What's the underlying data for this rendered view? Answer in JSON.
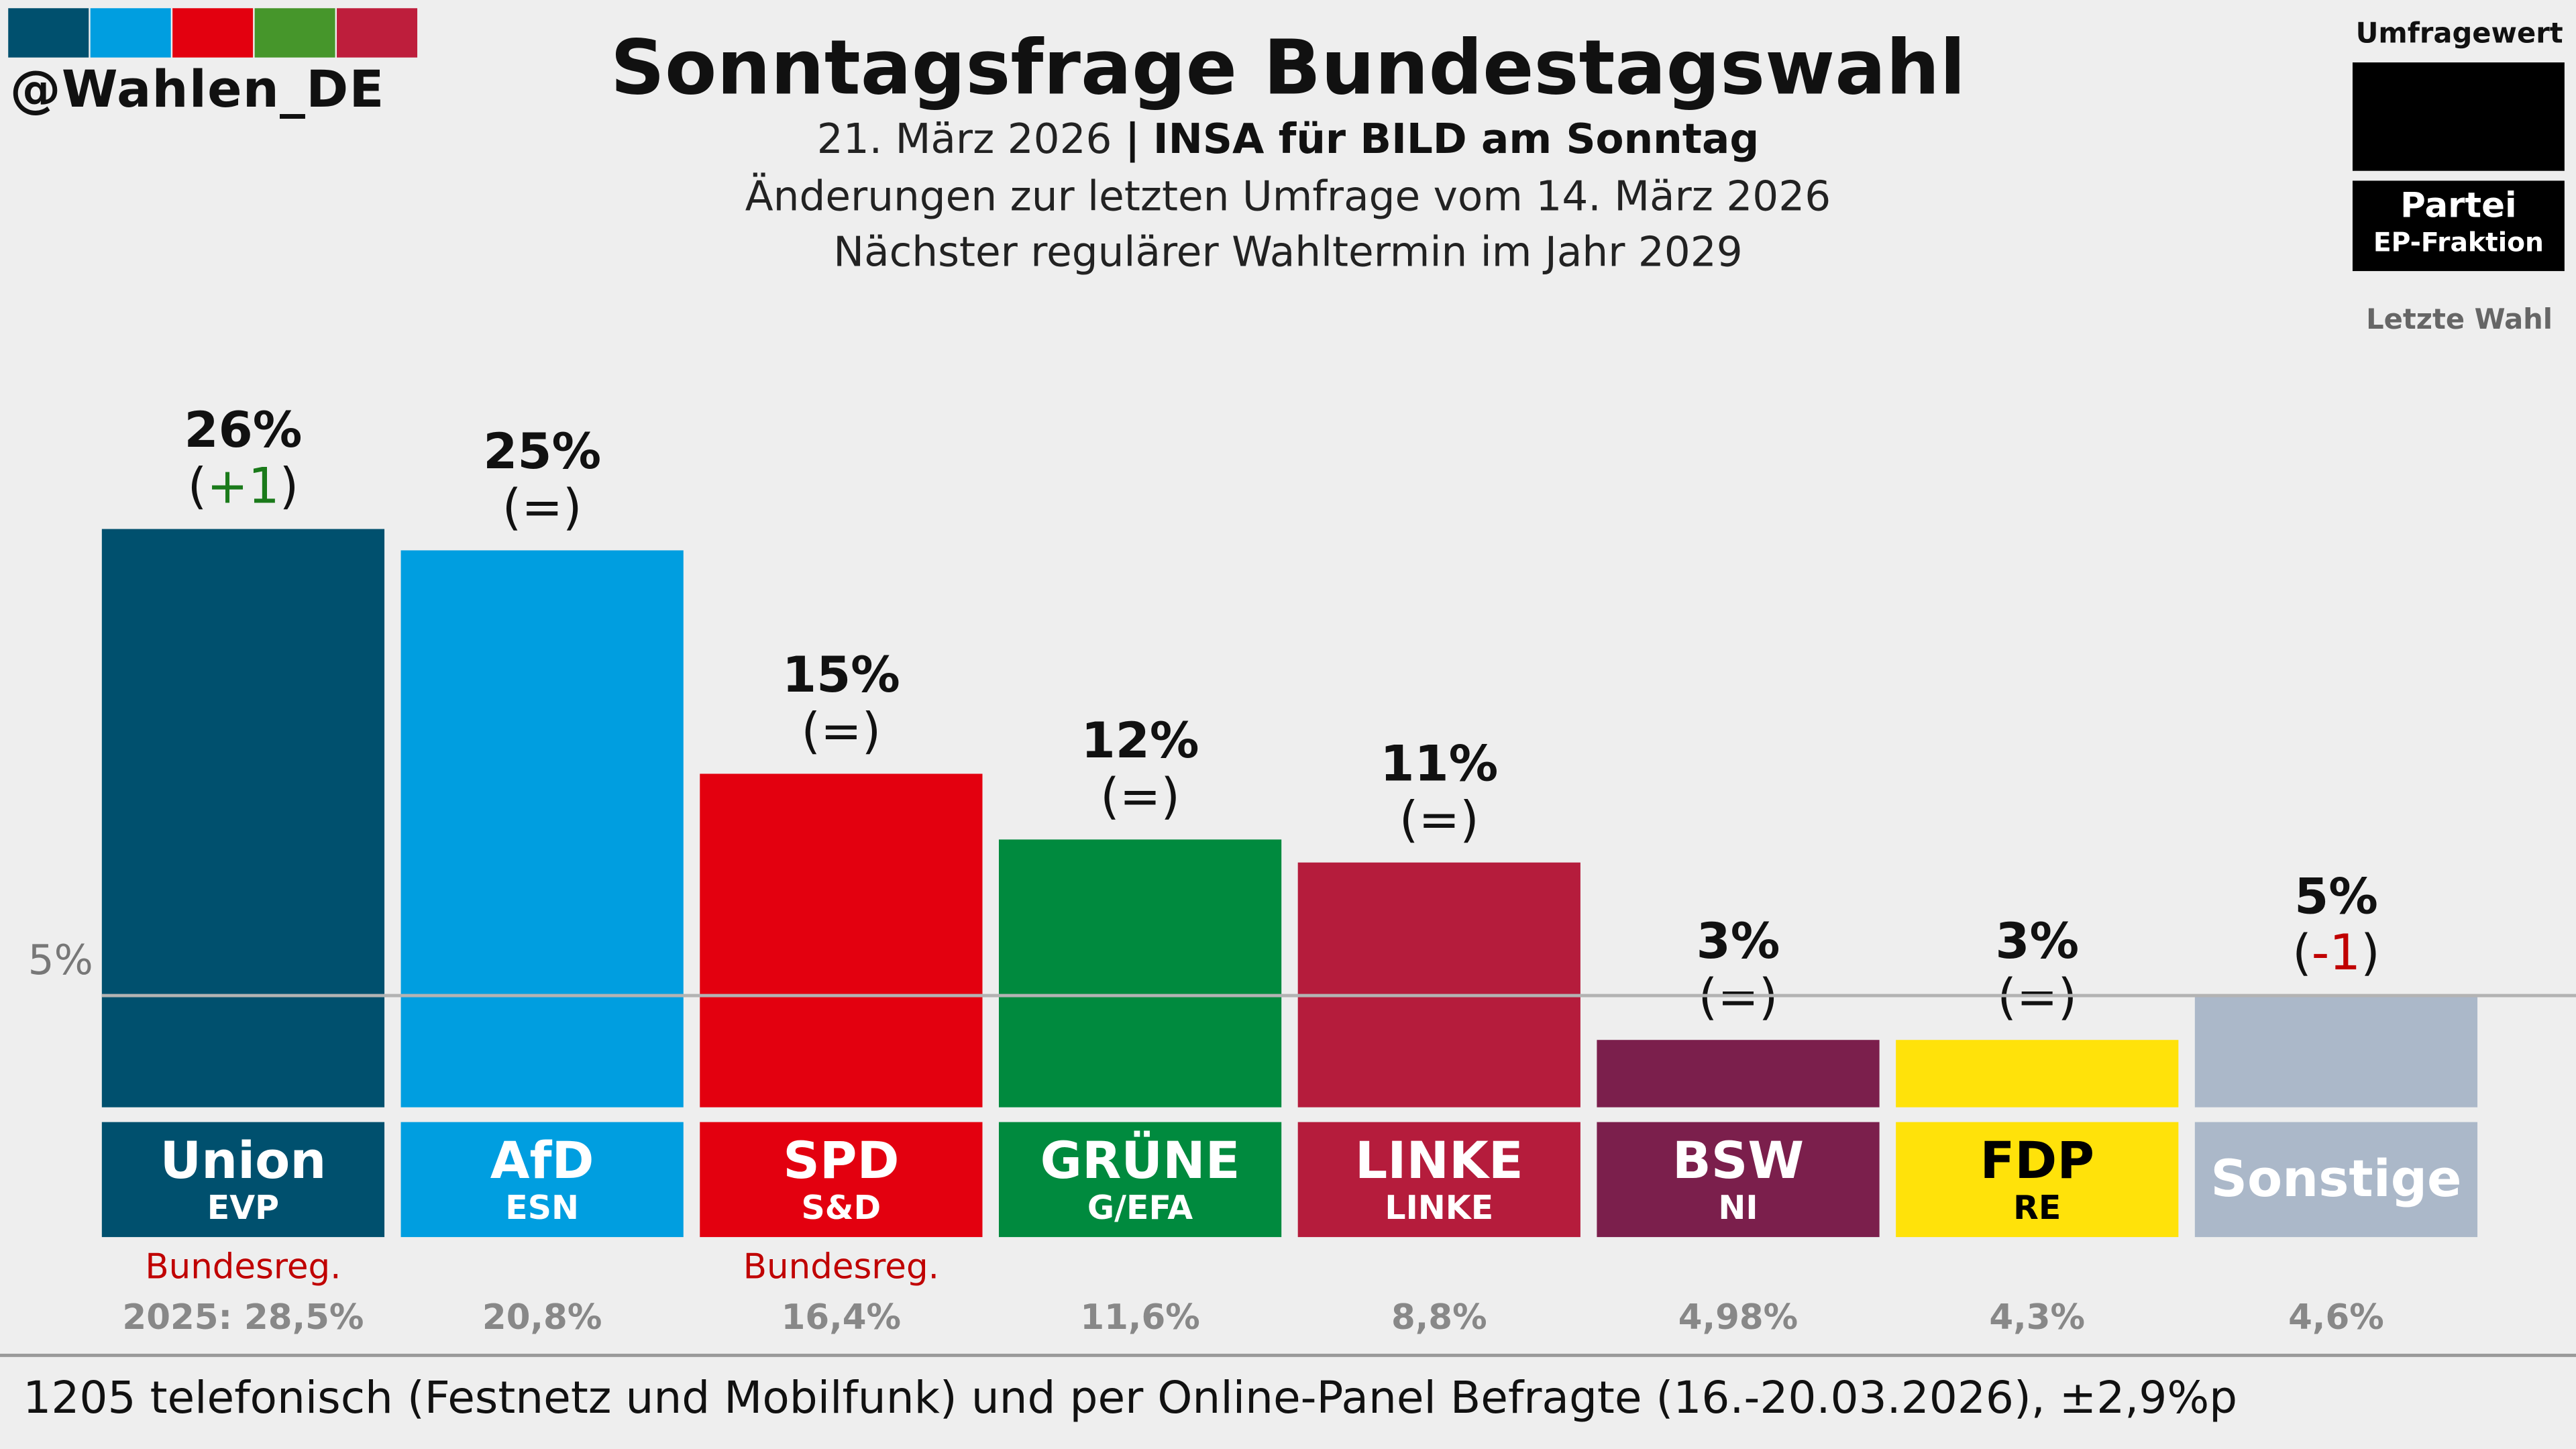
{
  "handle": "@Wahlen_DE",
  "logo_colors": [
    "#00506e",
    "#009ee0",
    "#e3000f",
    "#46962b",
    "#be1e3c"
  ],
  "title": "Sonntagsfrage Bundestagswahl",
  "subtitle": {
    "date": "21. März 2026",
    "separator": "|",
    "institute": "INSA für BILD am Sonntag",
    "changes_note": "Änderungen zur letzten Umfrage vom 14. März 2026",
    "next_election": "Nächster regulärer Wahltermin im Jahr 2029"
  },
  "legend": {
    "poll_value": "Umfragewert",
    "party": "Partei",
    "group": "EP-Fraktion",
    "last_election": "Letzte Wahl"
  },
  "reference_line_label": "5%",
  "chart_data": {
    "type": "bar",
    "unit": "%",
    "threshold": 5,
    "categories": [
      "Union",
      "AfD",
      "SPD",
      "GRÜNE",
      "LINKE",
      "BSW",
      "FDP",
      "Sonstige"
    ],
    "values": [
      26,
      25,
      15,
      12,
      11,
      3,
      3,
      5
    ],
    "value_labels": [
      "26%",
      "25%",
      "15%",
      "12%",
      "11%",
      "3%",
      "3%",
      "5%"
    ],
    "changes": [
      {
        "open": "(",
        "delta": "+1",
        "close": ")",
        "color": "#1a7a1a"
      },
      {
        "open": "(",
        "delta": "=",
        "close": ")",
        "color": "#111111"
      },
      {
        "open": "(",
        "delta": "=",
        "close": ")",
        "color": "#111111"
      },
      {
        "open": "(",
        "delta": "=",
        "close": ")",
        "color": "#111111"
      },
      {
        "open": "(",
        "delta": "=",
        "close": ")",
        "color": "#111111"
      },
      {
        "open": "(",
        "delta": "=",
        "close": ")",
        "color": "#111111"
      },
      {
        "open": "(",
        "delta": "=",
        "close": ")",
        "color": "#111111"
      },
      {
        "open": "(",
        "delta": "-1",
        "close": ")",
        "color": "#c00000"
      }
    ],
    "ep_groups": [
      "EVP",
      "ESN",
      "S&D",
      "G/EFA",
      "LINKE",
      "NI",
      "RE",
      ""
    ],
    "government": [
      "Bundesreg.",
      "",
      "Bundesreg.",
      "",
      "",
      "",
      "",
      ""
    ],
    "last_election_labels": [
      "2025: 28,5%",
      "20,8%",
      "16,4%",
      "11,6%",
      "8,8%",
      "4,98%",
      "4,3%",
      "4,6%"
    ],
    "colors": [
      "#00506e",
      "#009ee0",
      "#e3000f",
      "#008a3e",
      "#b51c3c",
      "#7b1f4c",
      "#ffe20a",
      "#abb8c9"
    ],
    "text_colors": [
      "#ffffff",
      "#ffffff",
      "#ffffff",
      "#ffffff",
      "#ffffff",
      "#ffffff",
      "#000000",
      "#ffffff"
    ]
  },
  "footer": "1205 telefonisch (Festnetz und Mobilfunk) und per Online-Panel Befragte (16.-20.03.2026), ±2,9%p"
}
